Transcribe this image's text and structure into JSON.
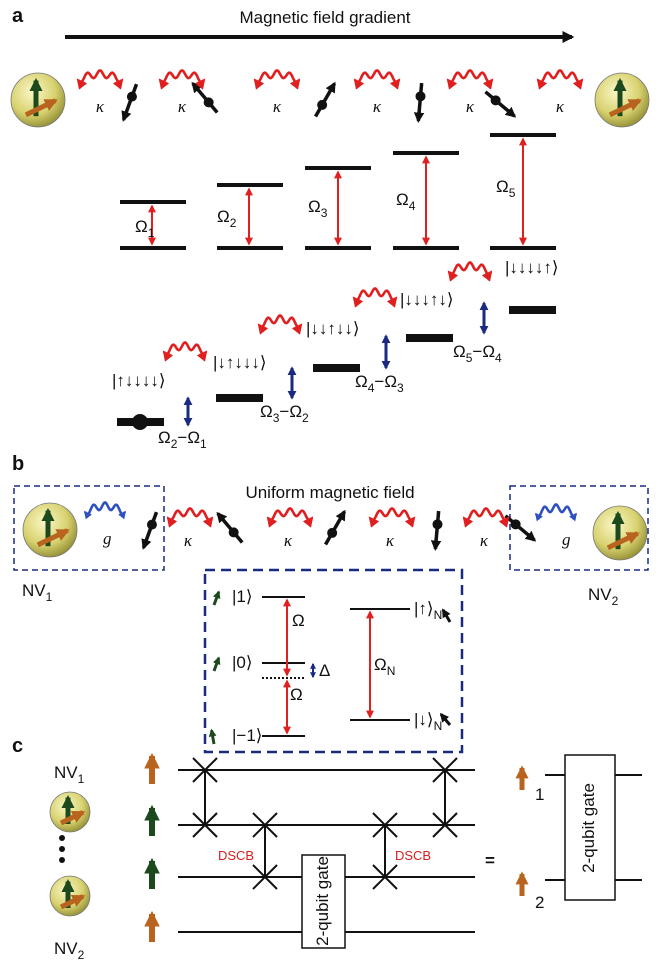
{
  "panel_a": {
    "label": "a",
    "title": "Magnetic field gradient",
    "couplings": [
      "κ",
      "κ",
      "κ",
      "κ",
      "κ",
      "κ"
    ],
    "rabi": [
      {
        "text": "Ω",
        "sub": "1"
      },
      {
        "text": "Ω",
        "sub": "2"
      },
      {
        "text": "Ω",
        "sub": "3"
      },
      {
        "text": "Ω",
        "sub": "4"
      },
      {
        "text": "Ω",
        "sub": "5"
      }
    ],
    "states": [
      "|↑↓↓↓↓⟩",
      "|↓↑↓↓↓⟩",
      "|↓↓↑↓↓⟩",
      "|↓↓↓↑↓⟩",
      "|↓↓↓↓↑⟩"
    ],
    "differences": [
      [
        {
          "text": "Ω",
          "sub": "2"
        },
        {
          "text": "−Ω",
          "sub": "1"
        }
      ],
      [
        {
          "text": "Ω",
          "sub": "3"
        },
        {
          "text": "−Ω",
          "sub": "2"
        }
      ],
      [
        {
          "text": "Ω",
          "sub": "4"
        },
        {
          "text": "−Ω",
          "sub": "3"
        }
      ],
      [
        {
          "text": "Ω",
          "sub": "5"
        },
        {
          "text": "−Ω",
          "sub": "4"
        }
      ]
    ]
  },
  "panel_b": {
    "label": "b",
    "title": "Uniform magnetic field",
    "couplings_g": [
      "g",
      "g"
    ],
    "couplings": [
      "κ",
      "κ",
      "κ",
      "κ"
    ],
    "nv": [
      {
        "text": "NV",
        "sub": "1"
      },
      {
        "text": "NV",
        "sub": "2"
      }
    ],
    "inset": {
      "levels": [
        "|1⟩",
        "|0⟩",
        "|−1⟩"
      ],
      "rabi": [
        "Ω",
        "Ω"
      ],
      "detuning": "Δ",
      "spin_levels": [
        {
          "text": "|↑⟩",
          "sub": "N"
        },
        {
          "text": "|↓⟩",
          "sub": "N"
        }
      ],
      "spin_rabi": {
        "text": "Ω",
        "sub": "N"
      }
    }
  },
  "panel_c": {
    "label": "c",
    "nv": [
      {
        "text": "NV",
        "sub": "1"
      },
      {
        "text": "NV",
        "sub": "2"
      }
    ],
    "gate_labels": [
      "DSCB",
      "DSCB"
    ],
    "gates": [
      "2-qubit gate",
      "2-qubit gate"
    ],
    "equals": "=",
    "qubits": [
      "1",
      "2"
    ]
  }
}
